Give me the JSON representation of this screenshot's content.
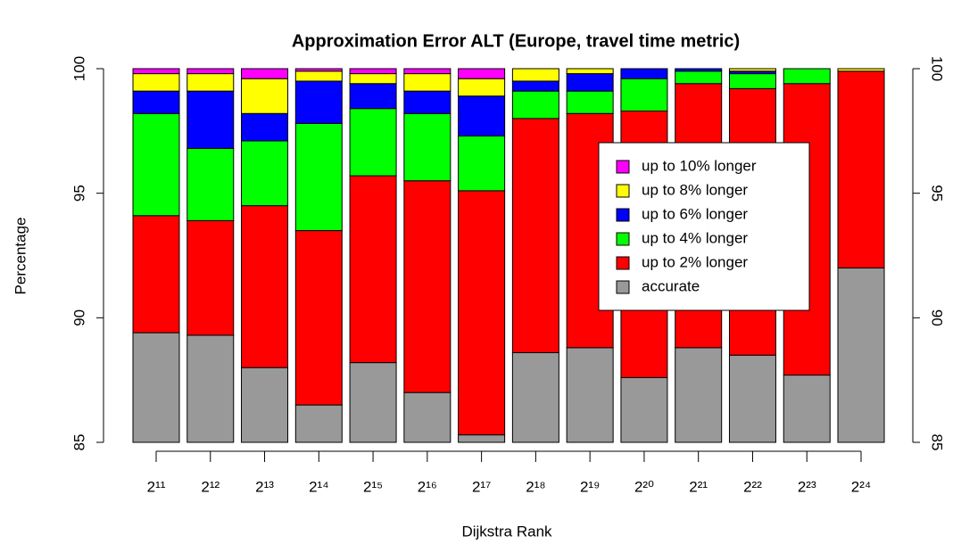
{
  "chart_data": {
    "type": "stacked_bar",
    "title": "Approximation Error ALT (Europe, travel time metric)",
    "x_label": "Dijkstra Rank",
    "y_label": "Percentage",
    "categories": [
      "2¹¹",
      "2¹²",
      "2¹³",
      "2¹⁴",
      "2¹⁵",
      "2¹⁶",
      "2¹⁷",
      "2¹⁸",
      "2¹⁹",
      "2²⁰",
      "2²¹",
      "2²²",
      "2²³",
      "2²⁴"
    ],
    "series": [
      {
        "name": "accurate",
        "color": "#999999",
        "values": [
          89.4,
          89.3,
          88.0,
          86.5,
          88.2,
          87.0,
          85.3,
          88.6,
          88.8,
          87.6,
          88.8,
          88.5,
          87.7,
          92.0
        ]
      },
      {
        "name": "up to 2% longer",
        "color": "#ff0000",
        "values": [
          4.7,
          4.6,
          6.5,
          7.0,
          7.5,
          8.5,
          9.8,
          9.4,
          9.4,
          10.7,
          10.6,
          10.7,
          11.7,
          7.9
        ]
      },
      {
        "name": "up to 4% longer",
        "color": "#00ff00",
        "values": [
          4.1,
          2.9,
          2.6,
          4.3,
          2.7,
          2.7,
          2.2,
          1.1,
          0.9,
          1.3,
          0.5,
          0.6,
          0.6,
          0
        ]
      },
      {
        "name": "up to 6% longer",
        "color": "#0000ff",
        "values": [
          0.9,
          2.3,
          1.1,
          1.7,
          1.0,
          0.9,
          1.6,
          0.4,
          0.7,
          0.4,
          0.1,
          0.1,
          0,
          0
        ]
      },
      {
        "name": "up to 8% longer",
        "color": "#ffff00",
        "values": [
          0.7,
          0.7,
          1.4,
          0.4,
          0.4,
          0.7,
          0.7,
          0.5,
          0.2,
          0,
          0,
          0.1,
          0,
          0.1
        ]
      },
      {
        "name": "up to 10% longer",
        "color": "#ff00ff",
        "values": [
          0.2,
          0.2,
          0.4,
          0.1,
          0.2,
          0.2,
          0.4,
          0,
          0,
          0,
          0,
          0,
          0,
          0
        ]
      }
    ],
    "ylim": [
      85,
      100
    ],
    "yticks": [
      85,
      90,
      95,
      100
    ],
    "y2lim": [
      85,
      100
    ],
    "y2ticks": [
      85,
      90,
      95,
      100
    ],
    "legend": "inside-right"
  }
}
